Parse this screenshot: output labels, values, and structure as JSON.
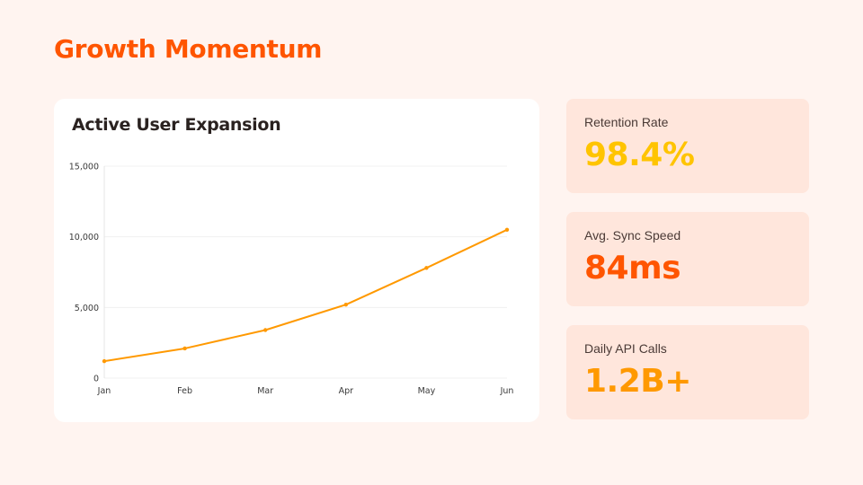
{
  "page": {
    "title": "Growth Momentum",
    "title_color": "#ff5500",
    "background": "#fff4f0"
  },
  "chart_card": {
    "title": "Active User Expansion"
  },
  "chart_data": {
    "type": "line",
    "title": "Active User Expansion",
    "categories": [
      "Jan",
      "Feb",
      "Mar",
      "Apr",
      "May",
      "Jun"
    ],
    "series": [
      {
        "values": [
          1200,
          2100,
          3400,
          5200,
          7800,
          10500
        ],
        "color": "#ff9900"
      }
    ],
    "ylim": [
      0,
      15000
    ],
    "yticks": [
      0,
      5000,
      10000,
      15000
    ],
    "ytick_labels": [
      "0",
      "5,000",
      "10,000",
      "15,000"
    ],
    "xlabel": "",
    "ylabel": "",
    "grid": true,
    "legend": "none"
  },
  "stats": [
    {
      "label": "Retention Rate",
      "value": "98.4%",
      "color": "#ffc400"
    },
    {
      "label": "Avg. Sync Speed",
      "value": "84ms",
      "color": "#ff5500"
    },
    {
      "label": "Daily API Calls",
      "value": "1.2B+",
      "color": "#ff9900"
    }
  ]
}
